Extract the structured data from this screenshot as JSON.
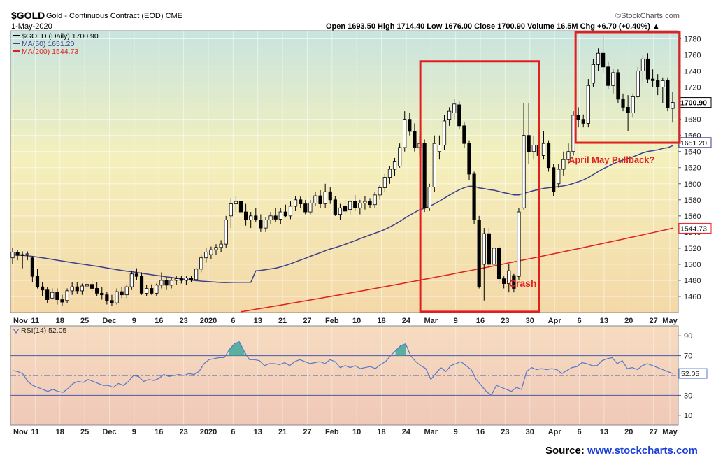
{
  "header": {
    "symbol": "$GOLD",
    "description": "Gold - Continuous Contract (EOD)  CME",
    "date": "1-May-2020",
    "ohlc": "Open 1693.50  High 1714.40  Low 1676.00  Close 1700.90  Volume 16.5M  Chg +6.70 (+0.40%) ▲",
    "watermark": "©StockCharts.com"
  },
  "source": {
    "label": "Source:",
    "link": "www.stockcharts.com"
  },
  "colors": {
    "up": "#ffffff",
    "down": "#000000",
    "ma50": "#3a3f8f",
    "ma200": "#e02020",
    "annotation": "#e02020",
    "rsi": "#5577cc",
    "rsi_fill": "#3fa89a"
  },
  "chart_data": [
    {
      "type": "candlestick",
      "title": "$GOLD (Daily) 1700.90",
      "legend": [
        {
          "name": "$GOLD (Daily) 1700.90",
          "color": "#000000"
        },
        {
          "name": "MA(50) 1651.20",
          "color": "#3a3f8f"
        },
        {
          "name": "MA(200) 1544.73",
          "color": "#e02020"
        }
      ],
      "ylim": [
        1440,
        1790
      ],
      "y_ticks": [
        1460,
        1480,
        1500,
        1520,
        1540,
        1560,
        1580,
        1600,
        1620,
        1640,
        1660,
        1680,
        1700,
        1720,
        1740,
        1760,
        1780
      ],
      "x_tick_labels": [
        "Nov",
        "11",
        "18",
        "25",
        "Dec",
        "9",
        "16",
        "23",
        "2020",
        "6",
        "13",
        "21",
        "27",
        "Feb",
        "10",
        "18",
        "24",
        "Mar",
        "9",
        "16",
        "23",
        "30",
        "Apr",
        "6",
        "13",
        "20",
        "27",
        "May"
      ],
      "last_value_labels": {
        "close": "1700.90",
        "ma50": "1651.20",
        "ma200": "1544.73"
      },
      "candles": [
        [
          1508,
          1520,
          1500,
          1515
        ],
        [
          1515,
          1518,
          1505,
          1511
        ],
        [
          1511,
          1516,
          1495,
          1512
        ],
        [
          1512,
          1516,
          1505,
          1513
        ],
        [
          1508,
          1510,
          1478,
          1485
        ],
        [
          1485,
          1494,
          1470,
          1472
        ],
        [
          1472,
          1478,
          1460,
          1468
        ],
        [
          1468,
          1472,
          1452,
          1456
        ],
        [
          1458,
          1470,
          1456,
          1465
        ],
        [
          1465,
          1470,
          1450,
          1456
        ],
        [
          1456,
          1462,
          1448,
          1453
        ],
        [
          1455,
          1470,
          1452,
          1467
        ],
        [
          1467,
          1478,
          1462,
          1472
        ],
        [
          1472,
          1478,
          1463,
          1467
        ],
        [
          1467,
          1476,
          1462,
          1473
        ],
        [
          1473,
          1480,
          1466,
          1475
        ],
        [
          1475,
          1480,
          1466,
          1470
        ],
        [
          1470,
          1478,
          1460,
          1464
        ],
        [
          1464,
          1472,
          1456,
          1462
        ],
        [
          1462,
          1466,
          1450,
          1455
        ],
        [
          1455,
          1462,
          1448,
          1452
        ],
        [
          1452,
          1470,
          1450,
          1466
        ],
        [
          1466,
          1472,
          1458,
          1462
        ],
        [
          1462,
          1475,
          1458,
          1472
        ],
        [
          1472,
          1492,
          1468,
          1488
        ],
        [
          1488,
          1495,
          1480,
          1485
        ],
        [
          1485,
          1490,
          1462,
          1464
        ],
        [
          1464,
          1474,
          1460,
          1470
        ],
        [
          1470,
          1475,
          1462,
          1464
        ],
        [
          1464,
          1476,
          1460,
          1474
        ],
        [
          1474,
          1490,
          1470,
          1480
        ],
        [
          1480,
          1484,
          1468,
          1474
        ],
        [
          1474,
          1484,
          1470,
          1480
        ],
        [
          1480,
          1486,
          1474,
          1482
        ],
        [
          1482,
          1486,
          1476,
          1480
        ],
        [
          1480,
          1485,
          1474,
          1483
        ],
        [
          1483,
          1486,
          1478,
          1481
        ],
        [
          1481,
          1496,
          1478,
          1494
        ],
        [
          1494,
          1512,
          1490,
          1508
        ],
        [
          1508,
          1520,
          1502,
          1515
        ],
        [
          1512,
          1522,
          1506,
          1518
        ],
        [
          1518,
          1525,
          1512,
          1521
        ],
        [
          1521,
          1530,
          1515,
          1525
        ],
        [
          1525,
          1560,
          1520,
          1555
        ],
        [
          1560,
          1582,
          1545,
          1575
        ],
        [
          1575,
          1585,
          1565,
          1578
        ],
        [
          1578,
          1612,
          1560,
          1565
        ],
        [
          1565,
          1575,
          1548,
          1555
        ],
        [
          1555,
          1565,
          1545,
          1560
        ],
        [
          1560,
          1570,
          1552,
          1555
        ],
        [
          1555,
          1562,
          1540,
          1545
        ],
        [
          1545,
          1558,
          1540,
          1555
        ],
        [
          1555,
          1565,
          1550,
          1560
        ],
        [
          1560,
          1570,
          1552,
          1556
        ],
        [
          1556,
          1570,
          1550,
          1565
        ],
        [
          1565,
          1574,
          1558,
          1560
        ],
        [
          1560,
          1578,
          1556,
          1572
        ],
        [
          1572,
          1585,
          1566,
          1580
        ],
        [
          1580,
          1584,
          1570,
          1575
        ],
        [
          1575,
          1580,
          1562,
          1565
        ],
        [
          1565,
          1580,
          1562,
          1576
        ],
        [
          1576,
          1590,
          1572,
          1585
        ],
        [
          1585,
          1592,
          1570,
          1575
        ],
        [
          1575,
          1600,
          1570,
          1590
        ],
        [
          1590,
          1596,
          1575,
          1580
        ],
        [
          1580,
          1585,
          1560,
          1562
        ],
        [
          1562,
          1575,
          1555,
          1570
        ],
        [
          1572,
          1582,
          1562,
          1566
        ],
        [
          1568,
          1580,
          1562,
          1578
        ],
        [
          1578,
          1586,
          1566,
          1570
        ],
        [
          1570,
          1580,
          1562,
          1576
        ],
        [
          1576,
          1585,
          1568,
          1578
        ],
        [
          1578,
          1582,
          1570,
          1574
        ],
        [
          1574,
          1590,
          1570,
          1586
        ],
        [
          1586,
          1598,
          1580,
          1595
        ],
        [
          1595,
          1612,
          1590,
          1608
        ],
        [
          1608,
          1622,
          1600,
          1618
        ],
        [
          1618,
          1632,
          1610,
          1628
        ],
        [
          1622,
          1650,
          1620,
          1645
        ],
        [
          1645,
          1690,
          1640,
          1680
        ],
        [
          1680,
          1688,
          1660,
          1665
        ],
        [
          1665,
          1675,
          1640,
          1645
        ],
        [
          1645,
          1660,
          1635,
          1650
        ],
        [
          1650,
          1655,
          1565,
          1570
        ],
        [
          1570,
          1600,
          1566,
          1596
        ],
        [
          1596,
          1660,
          1590,
          1650
        ],
        [
          1640,
          1660,
          1630,
          1648
        ],
        [
          1648,
          1685,
          1642,
          1678
        ],
        [
          1680,
          1695,
          1672,
          1690
        ],
        [
          1688,
          1705,
          1680,
          1699
        ],
        [
          1698,
          1702,
          1668,
          1672
        ],
        [
          1672,
          1676,
          1645,
          1650
        ],
        [
          1650,
          1654,
          1605,
          1612
        ],
        [
          1612,
          1615,
          1550,
          1555
        ],
        [
          1555,
          1560,
          1470,
          1472
        ],
        [
          1500,
          1545,
          1455,
          1538
        ],
        [
          1538,
          1545,
          1496,
          1500
        ],
        [
          1500,
          1525,
          1488,
          1520
        ],
        [
          1520,
          1524,
          1476,
          1482
        ],
        [
          1482,
          1485,
          1470,
          1476
        ],
        [
          1476,
          1500,
          1465,
          1492
        ],
        [
          1486,
          1488,
          1465,
          1470
        ],
        [
          1485,
          1570,
          1480,
          1565
        ],
        [
          1570,
          1700,
          1568,
          1660
        ],
        [
          1660,
          1700,
          1625,
          1640
        ],
        [
          1640,
          1660,
          1630,
          1648
        ],
        [
          1648,
          1655,
          1628,
          1635
        ],
        [
          1635,
          1665,
          1630,
          1650
        ],
        [
          1650,
          1654,
          1615,
          1620
        ],
        [
          1620,
          1625,
          1585,
          1590
        ],
        [
          1600,
          1625,
          1595,
          1618
        ],
        [
          1618,
          1640,
          1610,
          1630
        ],
        [
          1630,
          1650,
          1625,
          1640
        ],
        [
          1640,
          1690,
          1635,
          1685
        ],
        [
          1685,
          1695,
          1670,
          1680
        ],
        [
          1680,
          1686,
          1670,
          1675
        ],
        [
          1675,
          1730,
          1670,
          1722
        ],
        [
          1725,
          1755,
          1720,
          1748
        ],
        [
          1748,
          1768,
          1740,
          1762
        ],
        [
          1762,
          1785,
          1738,
          1745
        ],
        [
          1745,
          1752,
          1718,
          1722
        ],
        [
          1722,
          1742,
          1712,
          1738
        ],
        [
          1738,
          1742,
          1700,
          1705
        ],
        [
          1705,
          1712,
          1690,
          1695
        ],
        [
          1695,
          1710,
          1665,
          1688
        ],
        [
          1688,
          1712,
          1682,
          1708
        ],
        [
          1708,
          1745,
          1705,
          1740
        ],
        [
          1740,
          1760,
          1725,
          1755
        ],
        [
          1755,
          1762,
          1725,
          1730
        ],
        [
          1730,
          1742,
          1720,
          1728
        ],
        [
          1728,
          1736,
          1710,
          1720
        ],
        [
          1720,
          1732,
          1700,
          1728
        ],
        [
          1728,
          1732,
          1690,
          1694
        ],
        [
          1693.5,
          1714.4,
          1676,
          1700.9
        ]
      ]
    },
    {
      "type": "line",
      "title": "RSI(14) 52.05",
      "ylim": [
        0,
        100
      ],
      "y_ticks": [
        10,
        30,
        50,
        70,
        90
      ],
      "reference_lines": [
        30,
        50,
        70
      ],
      "last_value_label": "52.05",
      "x_tick_labels": [
        "Nov",
        "11",
        "18",
        "25",
        "Dec",
        "9",
        "16",
        "23",
        "2020",
        "6",
        "13",
        "21",
        "27",
        "Feb",
        "10",
        "18",
        "24",
        "Mar",
        "9",
        "16",
        "23",
        "30",
        "Apr",
        "6",
        "13",
        "20",
        "27",
        "May"
      ],
      "values": [
        55,
        54,
        52,
        44,
        40,
        38,
        36,
        34,
        36,
        34,
        33,
        37,
        42,
        44,
        43,
        46,
        44,
        42,
        40,
        40,
        38,
        42,
        40,
        44,
        50,
        49,
        44,
        46,
        45,
        47,
        51,
        49,
        50,
        51,
        50,
        52,
        51,
        54,
        62,
        66,
        67,
        68,
        68,
        76,
        82,
        84,
        74,
        66,
        66,
        65,
        60,
        62,
        62,
        61,
        63,
        60,
        64,
        66,
        64,
        62,
        63,
        64,
        62,
        66,
        64,
        58,
        60,
        58,
        60,
        57,
        58,
        59,
        57,
        61,
        64,
        70,
        75,
        80,
        82,
        70,
        64,
        60,
        57,
        46,
        52,
        58,
        54,
        60,
        62,
        64,
        60,
        56,
        46,
        40,
        34,
        30,
        40,
        38,
        36,
        34,
        38,
        36,
        54,
        58,
        56,
        57,
        56,
        57,
        56,
        52,
        55,
        58,
        59,
        63,
        62,
        60,
        60,
        65,
        67,
        68,
        62,
        65,
        57,
        58,
        56,
        60,
        62,
        60,
        58,
        56,
        54,
        52.05
      ]
    }
  ],
  "annotations": {
    "crash": "Crash",
    "pullback": "April May Pullback?"
  }
}
